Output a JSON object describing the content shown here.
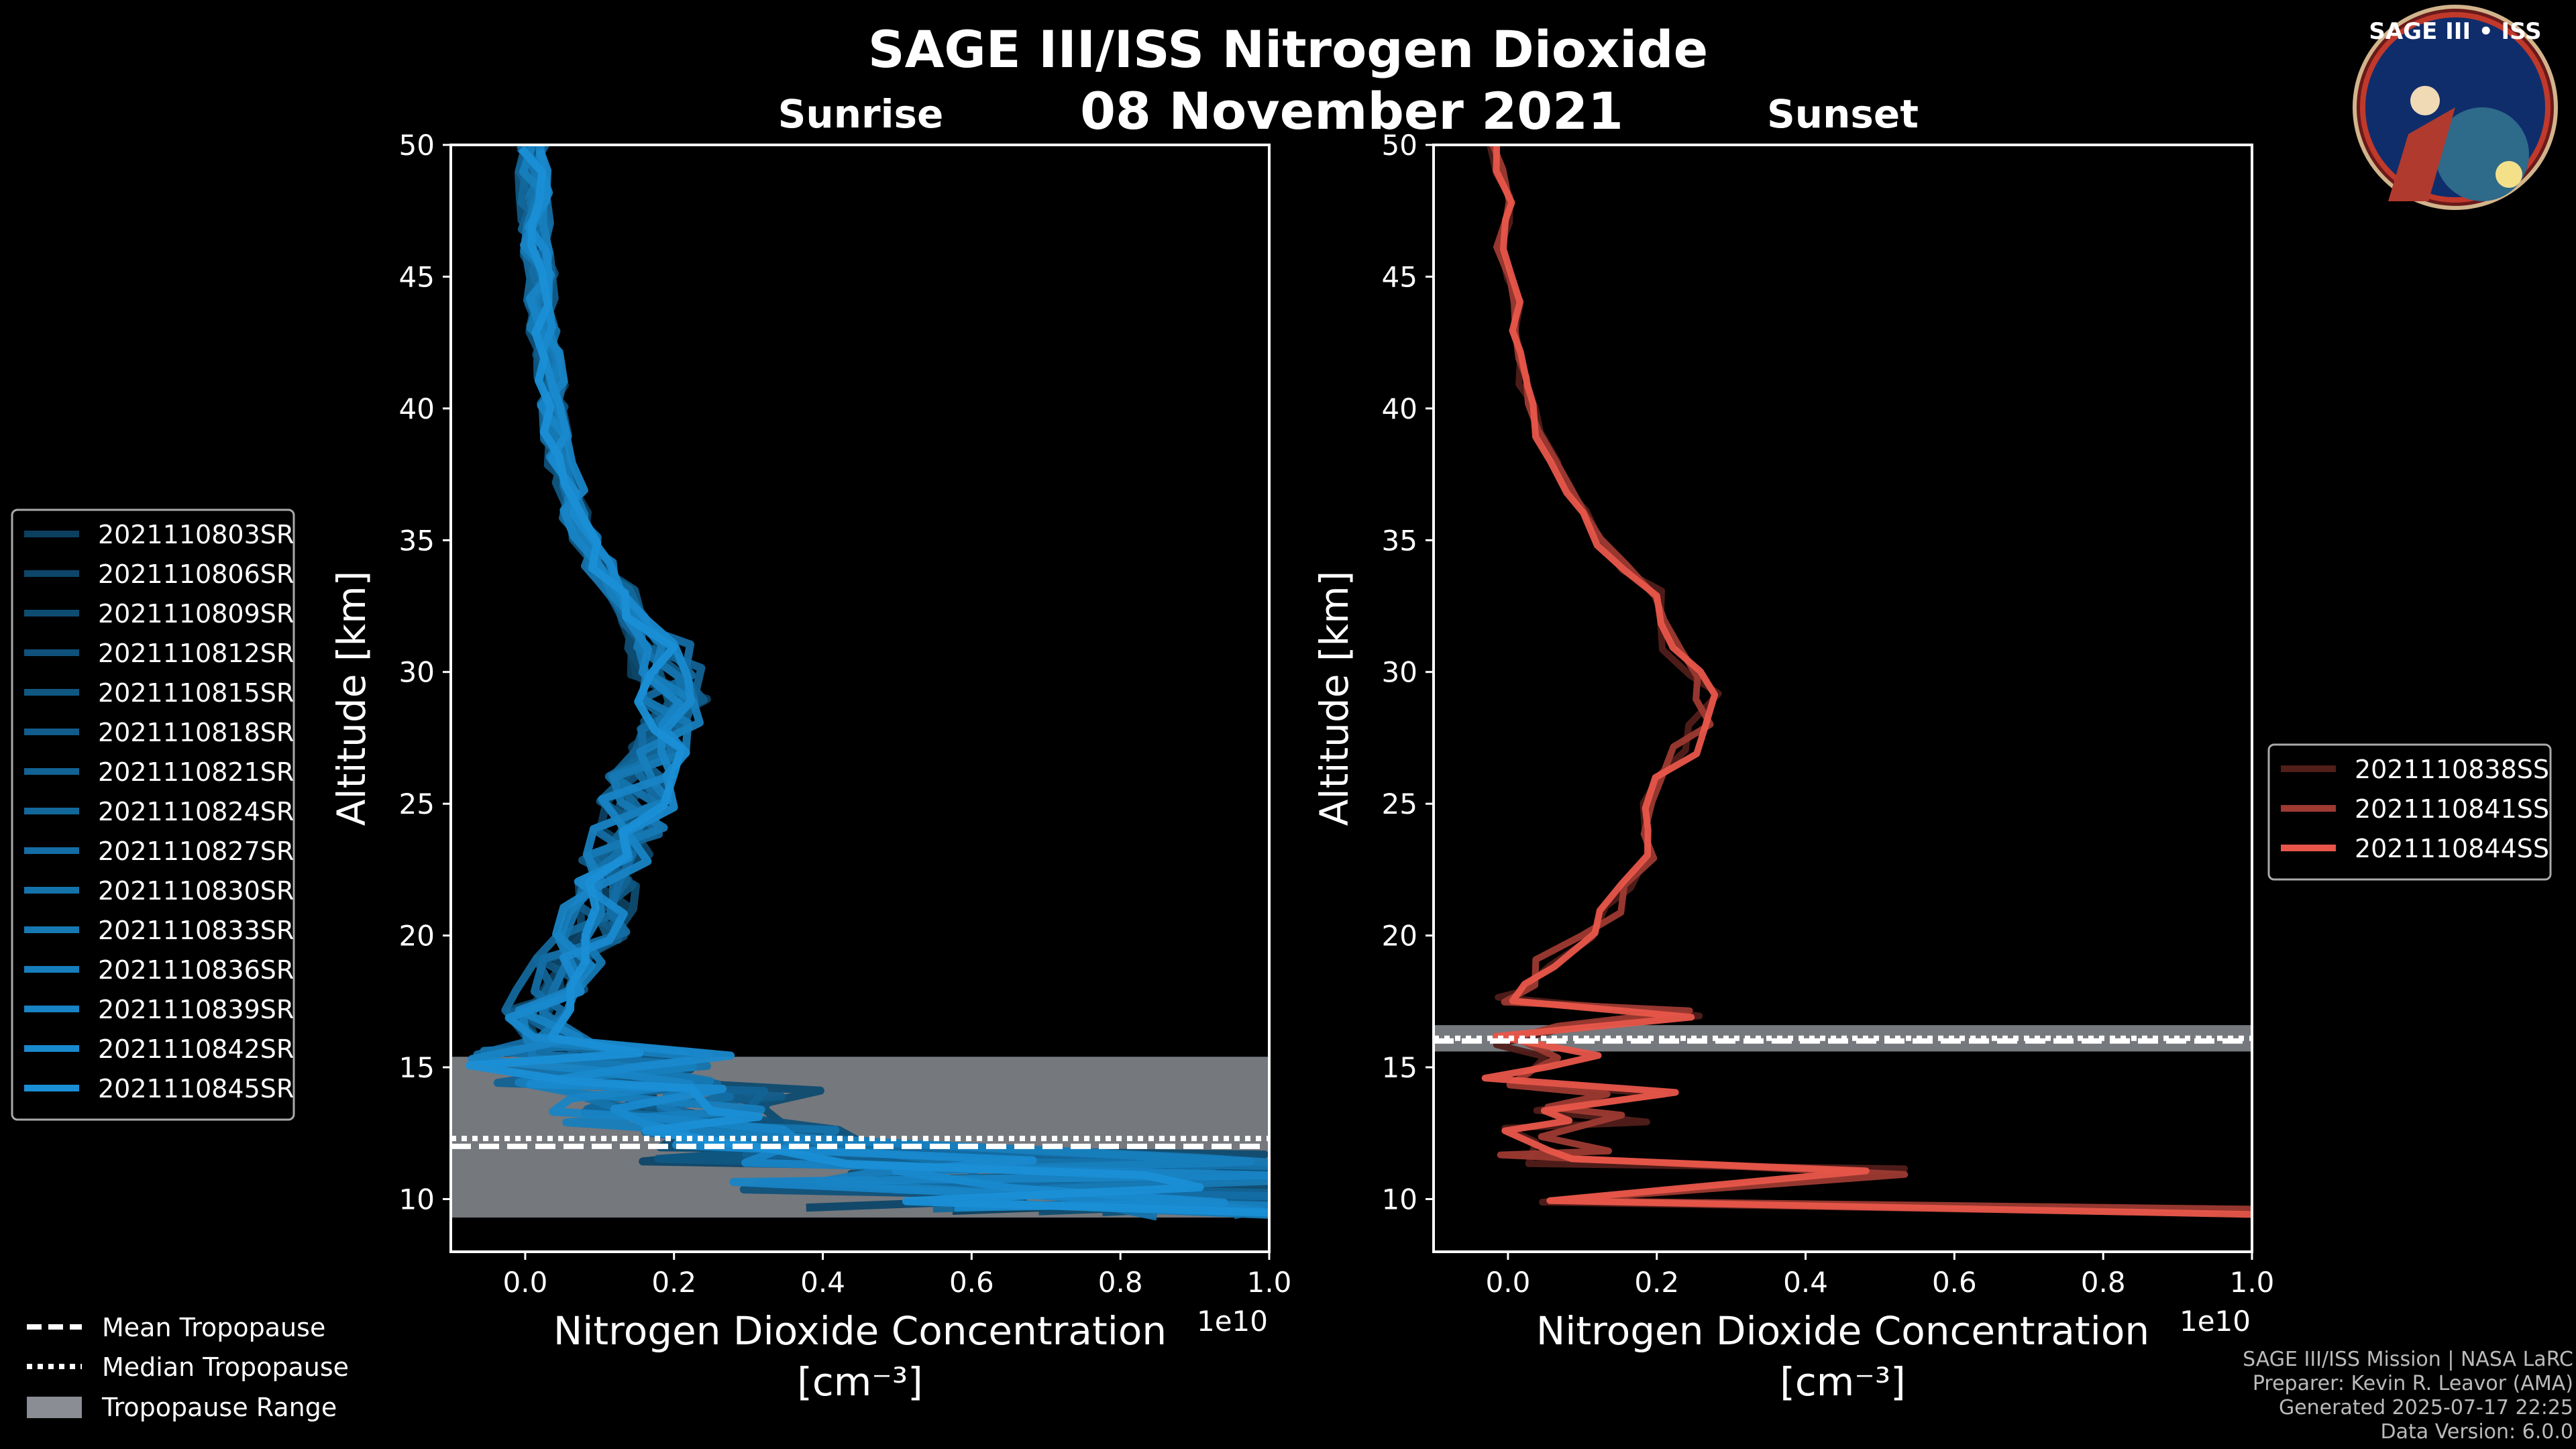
{
  "header": {
    "title": "SAGE III/ISS Nitrogen Dioxide",
    "date": "08 November 2021",
    "logo_text": "SAGE III • ISS"
  },
  "panels": {
    "sunrise": {
      "title": "Sunrise"
    },
    "sunset": {
      "title": "Sunset"
    }
  },
  "footer_legend": {
    "mean": "Mean Tropopause",
    "median": "Median Tropopause",
    "range": "Tropopause Range"
  },
  "credits": [
    "SAGE III/ISS Mission | NASA LaRC",
    "Preparer: Kevin R. Leavor (AMA)",
    "Generated 2025-07-17 22:25",
    "Data Version: 6.0.0"
  ],
  "colors": {
    "sunrise": "#1a8fd6",
    "sunset": "#e8564a",
    "tropopause_range": "#8a8d93",
    "axis": "#ffffff",
    "background": "#000000"
  },
  "chart_data": [
    {
      "type": "line",
      "title": "Sunrise",
      "xlabel": "Nitrogen Dioxide Concentration",
      "xunit": "[cm$^{-3}$]",
      "xunit_display": "[cm⁻³]",
      "ylabel": "Altitude [km]",
      "x_scale_label": "1e10",
      "xlim": [
        -0.1,
        1.0
      ],
      "ylim": [
        8,
        50
      ],
      "xticks": [
        0.0,
        0.2,
        0.4,
        0.6,
        0.8,
        1.0
      ],
      "xtick_labels": [
        "0.0",
        "0.2",
        "0.4",
        "0.6",
        "0.8",
        "1.0"
      ],
      "yticks": [
        10,
        15,
        20,
        25,
        30,
        35,
        40,
        45,
        50
      ],
      "ytick_labels": [
        "10",
        "15",
        "20",
        "25",
        "30",
        "35",
        "40",
        "45",
        "50"
      ],
      "tropopause": {
        "mean": 12.0,
        "median": 12.3,
        "range": [
          9.3,
          15.4
        ]
      },
      "legend_position": "left",
      "series": [
        {
          "name": "2021110803SR"
        },
        {
          "name": "2021110806SR"
        },
        {
          "name": "2021110809SR"
        },
        {
          "name": "2021110812SR"
        },
        {
          "name": "2021110815SR"
        },
        {
          "name": "2021110818SR"
        },
        {
          "name": "2021110821SR"
        },
        {
          "name": "2021110824SR"
        },
        {
          "name": "2021110827SR"
        },
        {
          "name": "2021110830SR"
        },
        {
          "name": "2021110833SR"
        },
        {
          "name": "2021110836SR"
        },
        {
          "name": "2021110839SR"
        },
        {
          "name": "2021110842SR"
        },
        {
          "name": "2021110845SR"
        }
      ],
      "profile": {
        "altitude": [
          9.5,
          10,
          10.5,
          11,
          11.5,
          12,
          12.5,
          13,
          13.5,
          14,
          14.5,
          15,
          15.5,
          16,
          17,
          18,
          19,
          20,
          21,
          22,
          23,
          24,
          25,
          26,
          27,
          28,
          29,
          30,
          31,
          32,
          33,
          34,
          35,
          36,
          37,
          38,
          39,
          40,
          41,
          42,
          43,
          44,
          45,
          46,
          47,
          48,
          49,
          50
        ],
        "no2": [
          0.45,
          0.6,
          0.4,
          0.55,
          0.3,
          0.35,
          0.25,
          0.2,
          0.15,
          0.22,
          0.12,
          0.08,
          0.1,
          0.05,
          0.02,
          0.03,
          0.06,
          0.09,
          0.1,
          0.11,
          0.12,
          0.14,
          0.15,
          0.16,
          0.18,
          0.19,
          0.2,
          0.19,
          0.18,
          0.15,
          0.13,
          0.1,
          0.08,
          0.07,
          0.06,
          0.05,
          0.045,
          0.04,
          0.035,
          0.03,
          0.025,
          0.02,
          0.02,
          0.015,
          0.015,
          0.012,
          0.01,
          0.01
        ]
      }
    },
    {
      "type": "line",
      "title": "Sunset",
      "xlabel": "Nitrogen Dioxide Concentration",
      "xunit": "[cm$^{-3}$]",
      "xunit_display": "[cm⁻³]",
      "ylabel": "Altitude [km]",
      "x_scale_label": "1e10",
      "xlim": [
        -0.1,
        1.0
      ],
      "ylim": [
        8,
        50
      ],
      "xticks": [
        0.0,
        0.2,
        0.4,
        0.6,
        0.8,
        1.0
      ],
      "xtick_labels": [
        "0.0",
        "0.2",
        "0.4",
        "0.6",
        "0.8",
        "1.0"
      ],
      "yticks": [
        10,
        15,
        20,
        25,
        30,
        35,
        40,
        45,
        50
      ],
      "ytick_labels": [
        "10",
        "15",
        "20",
        "25",
        "30",
        "35",
        "40",
        "45",
        "50"
      ],
      "tropopause": {
        "mean": 16.0,
        "median": 16.1,
        "range": [
          15.6,
          16.6
        ]
      },
      "legend_position": "right",
      "series": [
        {
          "name": "2021110838SS"
        },
        {
          "name": "2021110841SS"
        },
        {
          "name": "2021110844SS"
        }
      ],
      "profile": {
        "altitude": [
          9.5,
          10,
          11,
          11.5,
          12,
          12.5,
          13,
          13.5,
          14,
          14.5,
          15,
          15.5,
          16,
          16.5,
          17,
          17.5,
          18,
          19,
          20,
          21,
          22,
          23,
          24,
          25,
          26,
          27,
          28,
          29,
          30,
          31,
          32,
          33,
          34,
          35,
          36,
          37,
          38,
          39,
          40,
          41,
          42,
          43,
          44,
          45,
          46,
          47,
          48,
          49,
          50
        ],
        "no2": [
          1.0,
          0.0,
          0.54,
          0.05,
          0.1,
          0.02,
          0.14,
          0.0,
          0.18,
          0.03,
          0.0,
          0.1,
          0.0,
          0.08,
          0.26,
          0.0,
          0.02,
          0.05,
          0.1,
          0.14,
          0.17,
          0.18,
          0.2,
          0.19,
          0.21,
          0.24,
          0.26,
          0.27,
          0.26,
          0.22,
          0.21,
          0.2,
          0.16,
          0.12,
          0.1,
          0.08,
          0.06,
          0.04,
          0.03,
          0.02,
          0.02,
          0.01,
          0.01,
          0.0,
          -0.01,
          0.0,
          0.0,
          -0.01,
          -0.02
        ]
      }
    }
  ]
}
